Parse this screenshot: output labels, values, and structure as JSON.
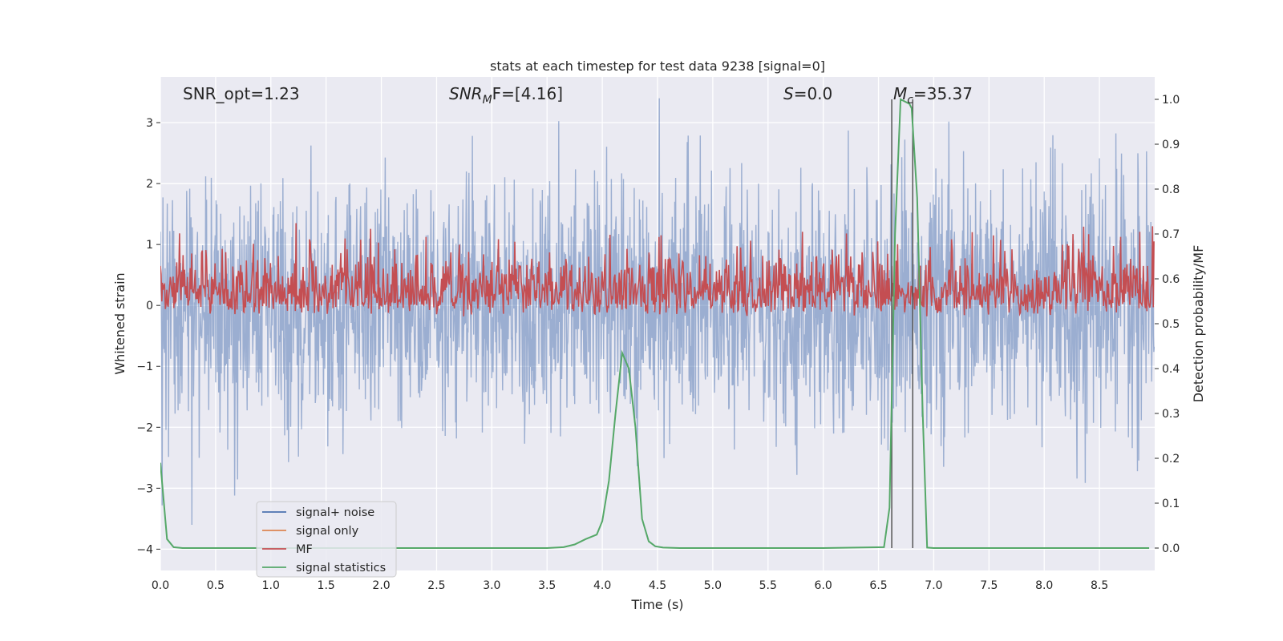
{
  "chart_data": {
    "type": "line",
    "title": "stats at each timestep for test data 9238 [signal=0]",
    "xlabel": "Time (s)",
    "ylabel": "Whitened strain",
    "y2label": "Detection probability/MF",
    "xlim": [
      0,
      9.0
    ],
    "ylim": [
      -4.35,
      3.75
    ],
    "y2lim": [
      -0.05,
      1.05
    ],
    "xticks": [
      0.0,
      0.5,
      1.0,
      1.5,
      2.0,
      2.5,
      3.0,
      3.5,
      4.0,
      4.5,
      5.0,
      5.5,
      6.0,
      6.5,
      7.0,
      7.5,
      8.0,
      8.5
    ],
    "xtick_labels": [
      "0.0",
      "0.5",
      "1.0",
      "1.5",
      "2.0",
      "2.5",
      "3.0",
      "3.5",
      "4.0",
      "4.5",
      "5.0",
      "5.5",
      "6.0",
      "6.5",
      "7.0",
      "7.5",
      "8.0",
      "8.5"
    ],
    "yticks": [
      -4,
      -3,
      -2,
      -1,
      0,
      1,
      2,
      3
    ],
    "ytick_labels": [
      "−4",
      "−3",
      "−2",
      "−1",
      "0",
      "1",
      "2",
      "3"
    ],
    "y2ticks": [
      0.0,
      0.1,
      0.2,
      0.3,
      0.4,
      0.5,
      0.6,
      0.7,
      0.8,
      0.9,
      1.0
    ],
    "y2tick_labels": [
      "0.0",
      "0.1",
      "0.2",
      "0.3",
      "0.4",
      "0.5",
      "0.6",
      "0.7",
      "0.8",
      "0.9",
      "1.0"
    ],
    "grid": true,
    "legend_position": "lower-left",
    "annotations": {
      "snr_opt": "SNR_opt=1.23",
      "snr_mf_prefix": "SNR",
      "snr_mf_sub": "M",
      "snr_mf_suffix": "F=[4.16]",
      "s_label": "S",
      "s_value": "=0.0",
      "mc_label": "M",
      "mc_sub": "c",
      "mc_value": "=35.37"
    },
    "markers": {
      "vertical_lines_s": [
        6.62,
        6.81
      ]
    },
    "series": [
      {
        "name": "signal+ noise",
        "color": "#4c72b0",
        "axis": "left",
        "description": "whitened strain noise, amplitude mostly within ±2, peaks near ±3.3",
        "sample_rate_hz": 256,
        "amplitude_sigma": 1.0
      },
      {
        "name": "signal only",
        "color": "#dd8452",
        "axis": "left",
        "values": []
      },
      {
        "name": "MF",
        "color": "#c44e52",
        "axis": "right",
        "description": "matched filter output fluctuating between ~0.5 and ~0.75"
      },
      {
        "name": "signal statistics",
        "color": "#55a868",
        "axis": "right",
        "x": [
          0.0,
          0.06,
          0.12,
          0.2,
          0.5,
          1.0,
          2.0,
          3.0,
          3.5,
          3.65,
          3.75,
          3.85,
          3.95,
          4.0,
          4.06,
          4.12,
          4.18,
          4.24,
          4.3,
          4.36,
          4.42,
          4.48,
          4.55,
          4.7,
          5.0,
          6.0,
          6.55,
          6.6,
          6.65,
          6.7,
          6.78,
          6.8,
          6.85,
          6.9,
          6.94,
          7.0,
          7.5,
          8.0,
          8.5,
          8.95
        ],
        "y": [
          0.19,
          0.02,
          0.002,
          0.0,
          0.0,
          0.0,
          0.0,
          0.0,
          0.0,
          0.002,
          0.008,
          0.02,
          0.03,
          0.06,
          0.15,
          0.3,
          0.435,
          0.4,
          0.27,
          0.065,
          0.015,
          0.004,
          0.001,
          0.0,
          0.0,
          0.0,
          0.002,
          0.09,
          0.7,
          1.0,
          0.99,
          0.98,
          0.78,
          0.3,
          0.001,
          0.0,
          0.0,
          0.0,
          0.0,
          0.0
        ]
      }
    ]
  }
}
